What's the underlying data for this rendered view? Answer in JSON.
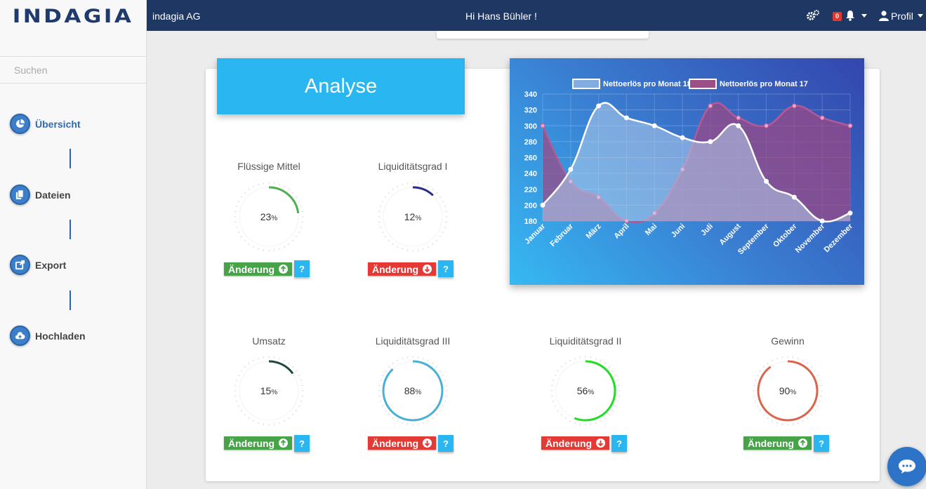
{
  "brand": {
    "logo_text": "INDAGIA"
  },
  "sidebar": {
    "search_placeholder": "Suchen",
    "items": [
      {
        "label": "Übersicht",
        "icon": "pie-chart-icon",
        "active": true
      },
      {
        "label": "Dateien",
        "icon": "files-icon"
      },
      {
        "label": "Export",
        "icon": "export-icon"
      },
      {
        "label": "Hochladen",
        "icon": "cloud-upload-icon"
      }
    ]
  },
  "header": {
    "company": "indagia AG",
    "greeting": "Hi Hans Bühler !",
    "notification_count": "0",
    "profile_label": "Profil"
  },
  "main": {
    "title": "Analyse",
    "change_label": "Änderung",
    "help_label": "?",
    "percent_sign": "%",
    "gauges": [
      {
        "title": "Flüssige Mittel",
        "value": 23,
        "color": "#4caf50",
        "trend": "up"
      },
      {
        "title": "Liquiditätsgrad I",
        "value": 12,
        "color": "#2a2a8a",
        "trend": "down"
      },
      {
        "title": "Umsatz",
        "value": 15,
        "color": "#1d4a3a",
        "trend": "up"
      },
      {
        "title": "Liquiditätsgrad III",
        "value": 88,
        "color": "#4ab0d8",
        "trend": "down"
      },
      {
        "title": "Liquiditätsgrad II",
        "value": 56,
        "color": "#22dd22",
        "trend": "down"
      },
      {
        "title": "Gewinn",
        "value": 90,
        "color": "#d9654f",
        "trend": "up"
      }
    ]
  },
  "chart_data": {
    "type": "area",
    "categories": [
      "Januar",
      "Februar",
      "März",
      "April",
      "Mai",
      "Juni",
      "Juli",
      "August",
      "September",
      "Oktober",
      "November",
      "Dezember"
    ],
    "series": [
      {
        "name": "Nettoerlös pro Monat 18",
        "values": [
          200,
          245,
          325,
          310,
          300,
          285,
          280,
          300,
          230,
          210,
          180,
          190
        ],
        "color": "#ffffff"
      },
      {
        "name": "Nettoerlös pro Monat 17",
        "values": [
          300,
          230,
          210,
          180,
          190,
          245,
          325,
          310,
          300,
          325,
          310,
          300
        ],
        "color": "#9c4f86"
      }
    ],
    "ylim": [
      180,
      340
    ],
    "yticks": [
      180,
      200,
      220,
      240,
      260,
      280,
      300,
      320,
      340
    ],
    "grid": true,
    "legend": "top"
  }
}
